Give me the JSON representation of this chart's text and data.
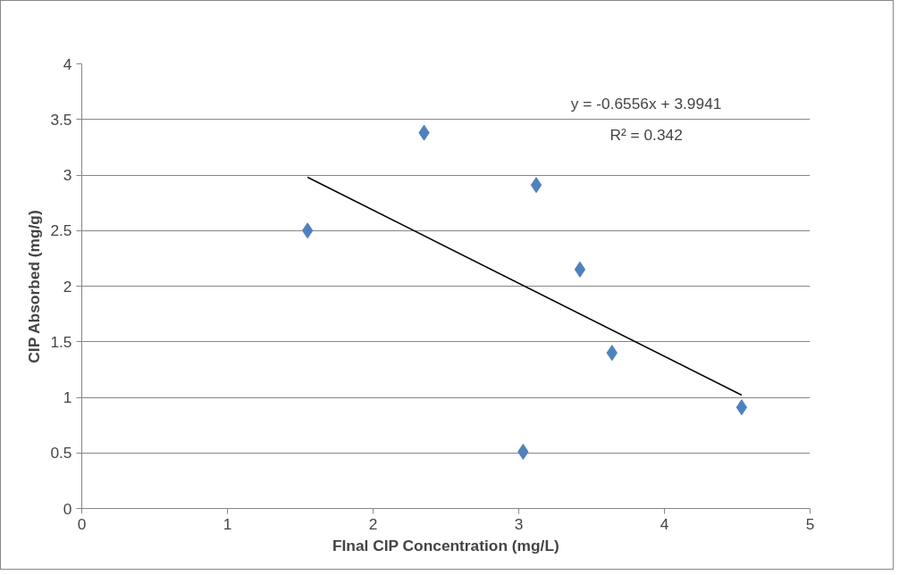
{
  "chart_data": {
    "type": "scatter",
    "xlabel": "FInal CIP Concentration (mg/L)",
    "ylabel": "CIP Absorbed (mg/g)",
    "xlim": [
      0,
      5
    ],
    "ylim": [
      0,
      4
    ],
    "xticks": [
      0,
      1,
      2,
      3,
      4,
      5
    ],
    "yticks": [
      0,
      0.5,
      1,
      1.5,
      2,
      2.5,
      3,
      3.5,
      4
    ],
    "grid": "y",
    "marker": "diamond",
    "series": [
      {
        "color": "#4f81bd",
        "x": [
          1.55,
          2.35,
          3.12,
          3.42,
          3.64,
          4.53,
          3.03
        ],
        "values": [
          2.5,
          3.38,
          2.91,
          2.15,
          1.4,
          0.91,
          0.51
        ]
      },
      {
        "type": "line",
        "color": "#000000",
        "marker": "none",
        "x": [
          1.55,
          4.53
        ],
        "values": [
          2.98,
          1.02
        ]
      }
    ],
    "annotations": [
      "y = -0.6556x + 3.9941",
      "R² = 0.342"
    ]
  }
}
